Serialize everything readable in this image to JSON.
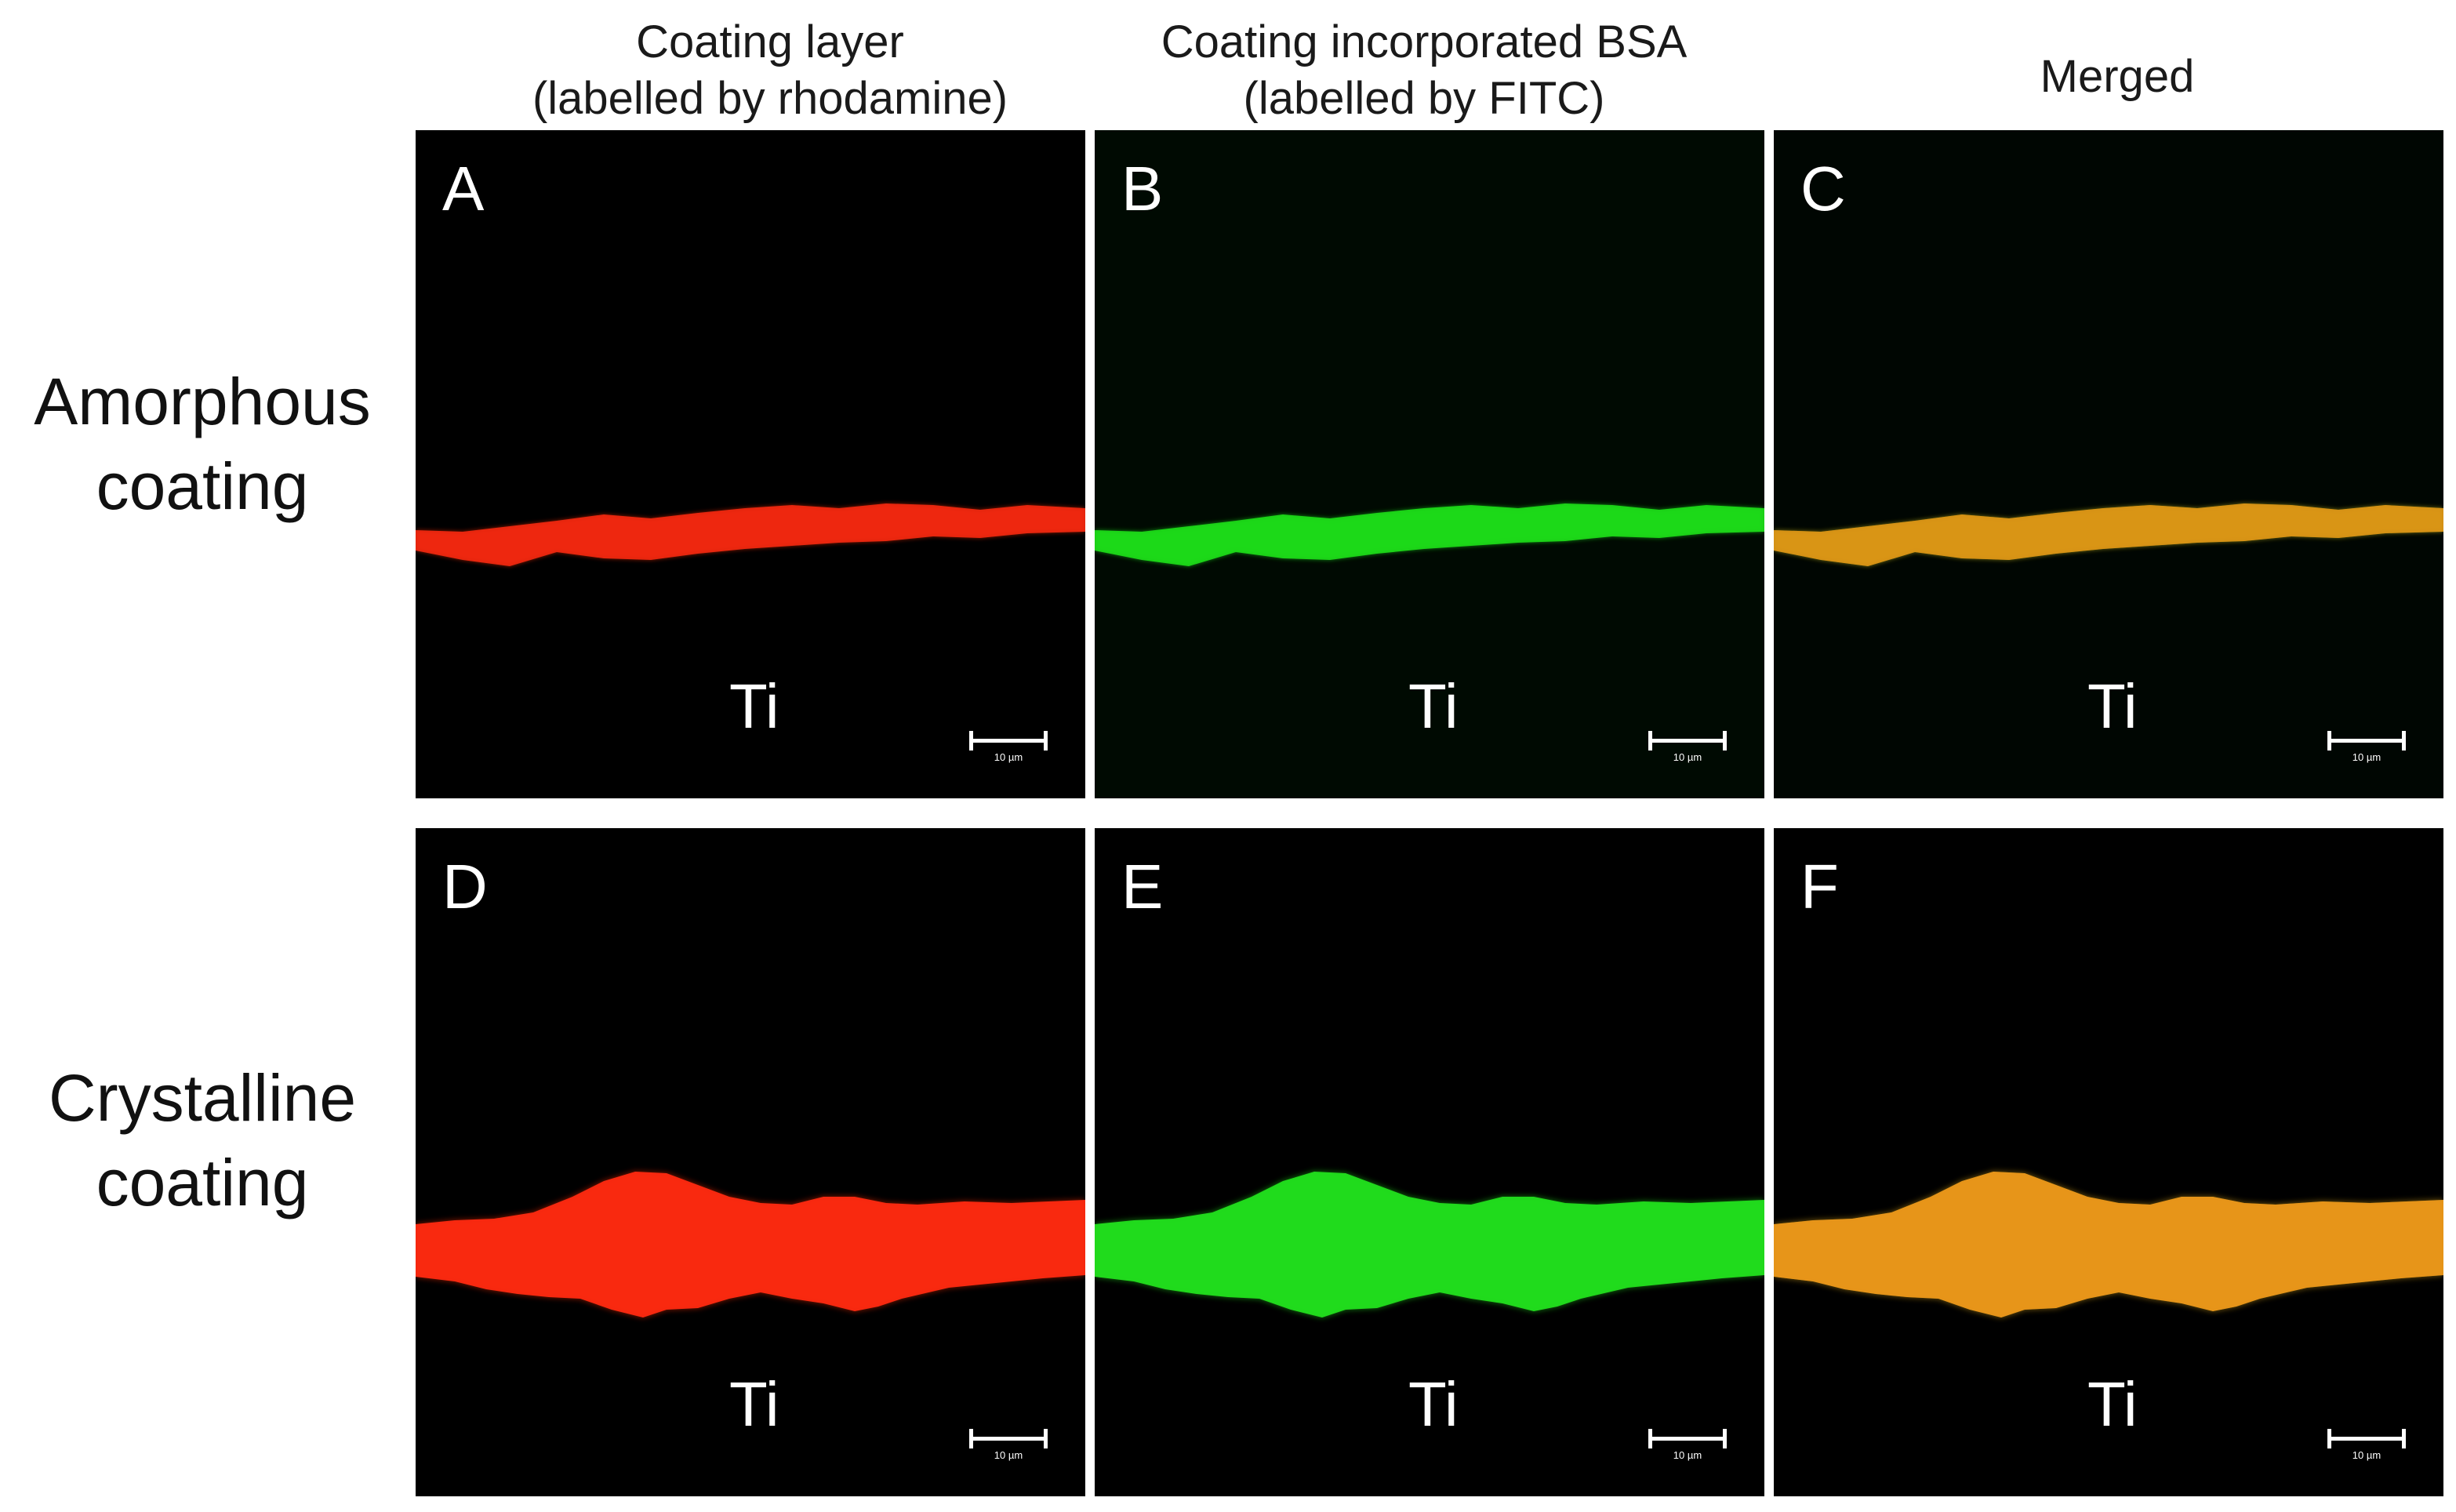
{
  "columns": [
    {
      "line1": "Coating layer",
      "line2": "(labelled by rhodamine)"
    },
    {
      "line1": "Coating incorporated BSA",
      "line2": "(labelled by FITC)"
    },
    {
      "line1": "Merged",
      "line2": ""
    }
  ],
  "rows": [
    {
      "line1": "Amorphous",
      "line2": "coating"
    },
    {
      "line1": "Crystalline",
      "line2": "coating"
    }
  ],
  "panels": [
    {
      "letter": "A",
      "substrate": "Ti",
      "scale": "10 µm",
      "channel": "red",
      "color": "#ff2a10",
      "layer": "thin"
    },
    {
      "letter": "B",
      "substrate": "Ti",
      "scale": "10 µm",
      "channel": "green",
      "color": "#1ee81a",
      "layer": "thin"
    },
    {
      "letter": "C",
      "substrate": "Ti",
      "scale": "10 µm",
      "channel": "merged",
      "color": "#d4c21a",
      "layer": "thin"
    },
    {
      "letter": "D",
      "substrate": "Ti",
      "scale": "10 µm",
      "channel": "red",
      "color": "#ff2a10",
      "layer": "thick"
    },
    {
      "letter": "E",
      "substrate": "Ti",
      "scale": "10 µm",
      "channel": "green",
      "color": "#22e01e",
      "layer": "thick"
    },
    {
      "letter": "F",
      "substrate": "Ti",
      "scale": "10 µm",
      "channel": "merged",
      "color": "#e0a81a",
      "layer": "thick"
    }
  ]
}
